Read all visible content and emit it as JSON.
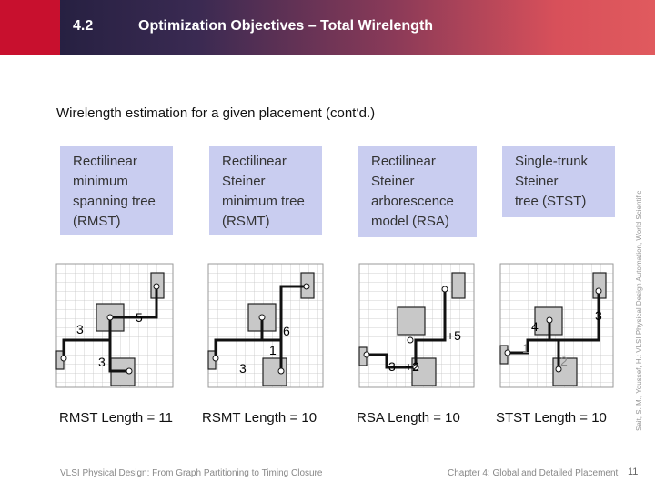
{
  "header": {
    "section": "4.2",
    "title": "Optimization Objectives – Total Wirelength"
  },
  "subtitle": "Wirelength estimation for a given placement (cont‘d.)",
  "boxes": [
    {
      "label": "Rectilinear\nminimum\nspanning tree\n(RMST)"
    },
    {
      "label": "Rectilinear\nSteiner\nminimum tree\n(RSMT)"
    },
    {
      "label": "Rectilinear\nSteiner\narborescence\nmodel (RSA)"
    },
    {
      "label": "Single-trunk\nSteiner\ntree (STST)"
    }
  ],
  "diagrams": [
    {
      "labels": [
        "5",
        "3",
        "3"
      ]
    },
    {
      "labels": [
        "6",
        "1",
        "3"
      ]
    },
    {
      "labels": [
        "+5",
        "3",
        "+2"
      ]
    },
    {
      "labels": [
        "4",
        "3",
        "1",
        "2"
      ]
    }
  ],
  "lengths": [
    "RMST Length = 11",
    "RSMT Length = 10",
    "RSA Length = 10",
    "STST Length = 10"
  ],
  "footer": {
    "left": "VLSI Physical Design: From Graph Partitioning to Timing Closure",
    "right": "Chapter 4: Global and Detailed Placement",
    "page": "11",
    "credit": "Sait, S. M., Youssef, H.: VLSI Physical Design Automation, World Scientific"
  }
}
